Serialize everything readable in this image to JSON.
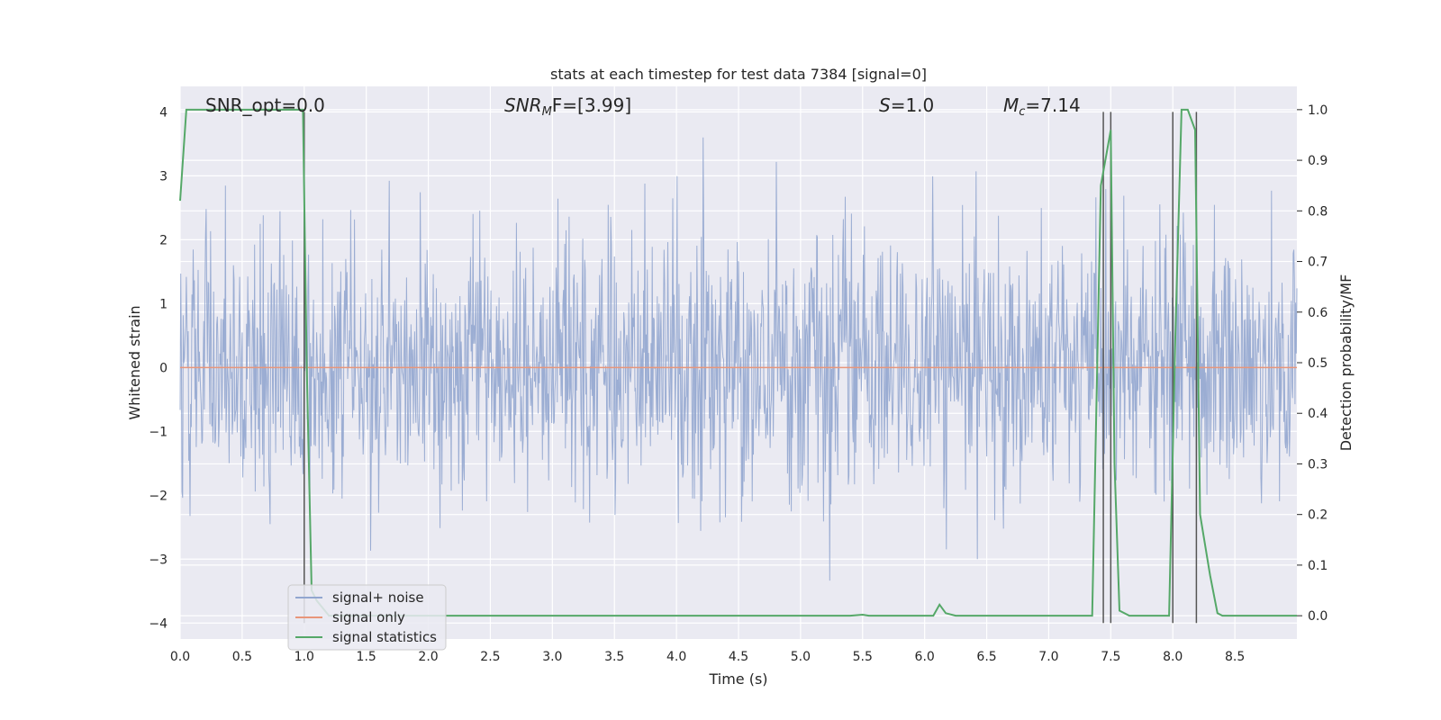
{
  "chart_data": {
    "type": "line",
    "title": "stats at each timestep for test data 7384 [signal=0]",
    "xlabel": "Time (s)",
    "ylabel": "Whitened strain",
    "ylabel_right": "Detection probability/MF",
    "xlim": [
      0.0,
      9.0
    ],
    "ylim": [
      -4.25,
      4.4
    ],
    "ylim_right": [
      -0.046,
      1.046
    ],
    "x_ticks": [
      0.0,
      0.5,
      1.0,
      1.5,
      2.0,
      2.5,
      3.0,
      3.5,
      4.0,
      4.5,
      5.0,
      5.5,
      6.0,
      6.5,
      7.0,
      7.5,
      8.0,
      8.5
    ],
    "x_tick_labels": [
      "0.0",
      "0.5",
      "1.0",
      "1.5",
      "2.0",
      "2.5",
      "3.0",
      "3.5",
      "4.0",
      "4.5",
      "5.0",
      "5.5",
      "6.0",
      "6.5",
      "7.0",
      "7.5",
      "8.0",
      "8.5"
    ],
    "y_ticks": [
      -4,
      -3,
      -2,
      -1,
      0,
      1,
      2,
      3,
      4
    ],
    "y_tick_labels": [
      "−4",
      "−3",
      "−2",
      "−1",
      "0",
      "1",
      "2",
      "3",
      "4"
    ],
    "y_right_ticks": [
      0.0,
      0.1,
      0.2,
      0.3,
      0.4,
      0.5,
      0.6,
      0.7,
      0.8,
      0.9,
      1.0
    ],
    "y_right_tick_labels": [
      "0.0",
      "0.1",
      "0.2",
      "0.3",
      "0.4",
      "0.5",
      "0.6",
      "0.7",
      "0.8",
      "0.9",
      "1.0"
    ],
    "grid": true,
    "legend_position": "lower-left",
    "annotations": {
      "snr_opt": "SNR_opt=0.0",
      "snr_mf_base": "SNR",
      "snr_mf_sub": "M",
      "snr_mf_rest": "F=[3.99]",
      "s_base": "S",
      "s_rest": "=1.0",
      "mc_base": "M",
      "mc_sub": "c",
      "mc_rest": "=7.14"
    },
    "series": [
      {
        "name": "signal+ noise",
        "color": "#92a6cf",
        "axis": "left",
        "description_values": "whitened noise, roughly Gaussian, amplitude mostly within ±3",
        "sample_rate": 200,
        "std": 1.0
      },
      {
        "name": "signal only",
        "color": "#e8967a",
        "axis": "left",
        "x": [
          0.0,
          9.0
        ],
        "y": [
          0.0,
          0.0
        ]
      },
      {
        "name": "signal statistics",
        "color": "#55a868",
        "axis": "right",
        "x": [
          0.0,
          0.05,
          0.1,
          0.15,
          0.5,
          0.9,
          0.99,
          1.02,
          1.06,
          1.1,
          1.2,
          1.5,
          2.0,
          2.5,
          3.0,
          3.5,
          4.0,
          4.5,
          5.0,
          5.4,
          5.5,
          5.55,
          6.0,
          6.07,
          6.12,
          6.17,
          6.25,
          6.5,
          7.0,
          7.35,
          7.42,
          7.5,
          7.53,
          7.57,
          7.65,
          7.9,
          7.97,
          8.02,
          8.07,
          8.12,
          8.18,
          8.22,
          8.3,
          8.36,
          8.4,
          8.5,
          9.0
        ],
        "y": [
          0.82,
          1.0,
          1.0,
          1.0,
          1.0,
          1.0,
          1.0,
          0.5,
          0.05,
          0.03,
          0.0,
          0.0,
          0.0,
          0.0,
          0.0,
          0.0,
          0.0,
          0.0,
          0.0,
          0.0,
          0.002,
          0.0,
          0.0,
          0.0,
          0.022,
          0.005,
          0.0,
          0.0,
          0.0,
          0.0,
          0.85,
          0.96,
          0.3,
          0.01,
          0.0,
          0.0,
          0.0,
          0.55,
          1.0,
          1.0,
          0.96,
          0.2,
          0.08,
          0.005,
          0.0,
          0.0,
          0.0
        ]
      }
    ],
    "vertical_markers": {
      "color": "#555555",
      "x": [
        1.0,
        7.44,
        7.5,
        8.0,
        8.19
      ],
      "y_range": [
        -4.0,
        4.0
      ]
    }
  },
  "legend": {
    "items": [
      {
        "label": "signal+ noise",
        "color": "#92a6cf"
      },
      {
        "label": "signal only",
        "color": "#e8967a"
      },
      {
        "label": "signal statistics",
        "color": "#55a868"
      }
    ]
  }
}
